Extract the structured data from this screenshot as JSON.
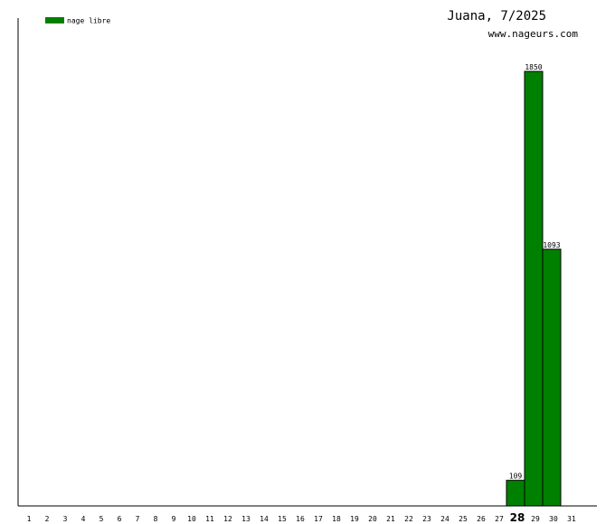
{
  "chart_data": {
    "type": "bar",
    "title": "Juana, 7/2025",
    "subtitle": "www.nageurs.com",
    "categories": [
      "1",
      "2",
      "3",
      "4",
      "5",
      "6",
      "7",
      "8",
      "9",
      "10",
      "11",
      "12",
      "13",
      "14",
      "15",
      "16",
      "17",
      "18",
      "19",
      "20",
      "21",
      "22",
      "23",
      "24",
      "25",
      "26",
      "27",
      "28",
      "29",
      "30",
      "31"
    ],
    "series": [
      {
        "name": "nage libre",
        "color": "#008000",
        "values": [
          null,
          null,
          null,
          null,
          null,
          null,
          null,
          null,
          null,
          null,
          null,
          null,
          null,
          null,
          null,
          null,
          null,
          null,
          null,
          null,
          null,
          null,
          null,
          null,
          null,
          null,
          null,
          109,
          1850,
          1093,
          null
        ]
      }
    ],
    "ylim": [
      0,
      2077
    ],
    "highlight": "28",
    "legend": "top-left"
  }
}
